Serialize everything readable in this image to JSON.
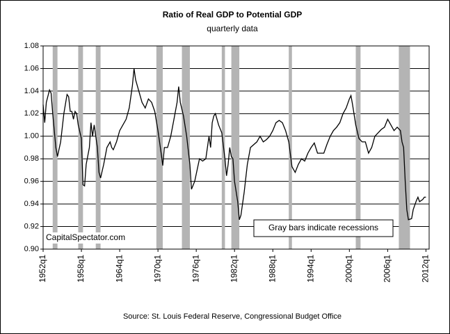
{
  "chart_data": {
    "type": "line",
    "title": "Ratio of Real GDP to Potential GDP",
    "subtitle": "quarterly data",
    "source": "Source: St. Louis Federal Reserve, Congressional Budget Office",
    "annotations": [
      "Gray bars indicate recessions",
      "CapitalSpectator.com"
    ],
    "x": [
      1952.0,
      1952.25,
      1952.5,
      1953.0,
      1953.25,
      1953.5,
      1954.0,
      1954.25,
      1954.75,
      1955.25,
      1955.75,
      1956.0,
      1956.25,
      1956.5,
      1956.75,
      1957.0,
      1957.25,
      1957.5,
      1958.0,
      1958.25,
      1958.5,
      1958.75,
      1959.25,
      1959.5,
      1959.75,
      1960.0,
      1960.25,
      1960.5,
      1960.75,
      1961.0,
      1961.5,
      1962.0,
      1962.5,
      1962.75,
      1963.0,
      1963.5,
      1964.0,
      1964.5,
      1965.0,
      1965.5,
      1966.0,
      1966.25,
      1966.5,
      1967.0,
      1967.5,
      1968.0,
      1968.5,
      1969.0,
      1969.5,
      1970.0,
      1970.5,
      1970.75,
      1971.0,
      1971.5,
      1972.0,
      1972.5,
      1973.0,
      1973.25,
      1973.5,
      1974.0,
      1974.5,
      1975.0,
      1975.25,
      1975.75,
      1976.5,
      1977.0,
      1977.5,
      1978.0,
      1978.25,
      1978.5,
      1978.75,
      1979.0,
      1979.5,
      1980.0,
      1980.5,
      1980.75,
      1981.0,
      1981.25,
      1981.5,
      1981.75,
      1982.0,
      1982.5,
      1982.75,
      1983.0,
      1983.5,
      1984.0,
      1984.5,
      1985.5,
      1986.0,
      1986.5,
      1987.0,
      1987.5,
      1988.0,
      1988.5,
      1989.0,
      1989.5,
      1990.0,
      1990.5,
      1991.0,
      1991.5,
      1992.0,
      1992.5,
      1993.0,
      1993.5,
      1994.0,
      1994.5,
      1995.0,
      1996.0,
      1996.5,
      1997.0,
      1997.5,
      1998.0,
      1998.5,
      1999.0,
      1999.5,
      2000.0,
      2000.25,
      2000.5,
      2001.0,
      2001.5,
      2002.0,
      2002.5,
      2003.0,
      2003.5,
      2004.0,
      2004.5,
      2005.0,
      2005.5,
      2006.0,
      2006.5,
      2007.0,
      2007.5,
      2008.0,
      2008.25,
      2008.5,
      2008.75,
      2009.0,
      2009.25,
      2009.75,
      2010.0,
      2010.5,
      2010.75,
      2011.0,
      2011.5,
      2011.75,
      2012.0
    ],
    "series": [
      {
        "name": "Ratio of Real GDP to Potential GDP",
        "color": "#000000",
        "values": [
          1.028,
          1.012,
          1.03,
          1.041,
          1.038,
          1.02,
          0.99,
          0.982,
          0.995,
          1.02,
          1.037,
          1.035,
          1.022,
          1.022,
          1.015,
          1.022,
          1.02,
          1.01,
          0.998,
          0.957,
          0.956,
          0.975,
          0.99,
          1.012,
          1.0,
          1.01,
          1.0,
          0.99,
          0.968,
          0.963,
          0.975,
          0.99,
          0.995,
          0.99,
          0.988,
          0.995,
          1.005,
          1.01,
          1.015,
          1.025,
          1.045,
          1.06,
          1.05,
          1.04,
          1.03,
          1.025,
          1.033,
          1.03,
          1.022,
          1.005,
          0.985,
          0.974,
          0.99,
          0.99,
          1.0,
          1.015,
          1.03,
          1.044,
          1.03,
          1.018,
          1.0,
          0.975,
          0.953,
          0.96,
          0.98,
          0.978,
          0.98,
          1.0,
          0.99,
          1.012,
          1.018,
          1.02,
          1.01,
          1.003,
          0.98,
          0.965,
          0.975,
          0.99,
          0.982,
          0.98,
          0.96,
          0.942,
          0.926,
          0.93,
          0.95,
          0.975,
          0.99,
          0.995,
          1.0,
          0.995,
          0.997,
          1.0,
          1.005,
          1.012,
          1.014,
          1.012,
          1.005,
          0.995,
          0.973,
          0.968,
          0.975,
          0.98,
          0.978,
          0.985,
          0.99,
          0.994,
          0.985,
          0.985,
          0.993,
          1.0,
          1.005,
          1.008,
          1.012,
          1.02,
          1.025,
          1.033,
          1.036,
          1.028,
          1.01,
          0.998,
          0.995,
          0.995,
          0.985,
          0.99,
          1.0,
          1.003,
          1.006,
          1.008,
          1.015,
          1.01,
          1.005,
          1.008,
          1.005,
          0.995,
          0.99,
          0.96,
          0.935,
          0.926,
          0.927,
          0.935,
          0.943,
          0.946,
          0.942,
          0.944,
          0.946,
          0.946
        ]
      }
    ],
    "recessions": [
      {
        "start": 1953.5,
        "end": 1954.25
      },
      {
        "start": 1957.5,
        "end": 1958.25
      },
      {
        "start": 1960.25,
        "end": 1961.0
      },
      {
        "start": 1969.75,
        "end": 1970.75
      },
      {
        "start": 1973.75,
        "end": 1975.0
      },
      {
        "start": 1980.0,
        "end": 1980.5
      },
      {
        "start": 1981.5,
        "end": 1982.75
      },
      {
        "start": 1990.5,
        "end": 1991.0
      },
      {
        "start": 2001.0,
        "end": 2001.75
      },
      {
        "start": 2007.75,
        "end": 2009.5
      }
    ],
    "recession_color": "#b4b4b4",
    "xlim": [
      1952,
      2012.5
    ],
    "xticks": [
      {
        "value": 1952,
        "label": "1952q1"
      },
      {
        "value": 1958,
        "label": "1958q1"
      },
      {
        "value": 1964,
        "label": "1964q1"
      },
      {
        "value": 1970,
        "label": "1970q1"
      },
      {
        "value": 1976,
        "label": "1976q1"
      },
      {
        "value": 1982,
        "label": "1982q1"
      },
      {
        "value": 1988,
        "label": "1988q1"
      },
      {
        "value": 1994,
        "label": "1994q1"
      },
      {
        "value": 2000,
        "label": "2000q1"
      },
      {
        "value": 2006,
        "label": "2006q1"
      },
      {
        "value": 2012,
        "label": "2012q1"
      }
    ],
    "ylim": [
      0.9,
      1.08
    ],
    "yticks": [
      {
        "value": 0.9,
        "label": "0.90"
      },
      {
        "value": 0.92,
        "label": "0.92"
      },
      {
        "value": 0.94,
        "label": "0.94"
      },
      {
        "value": 0.96,
        "label": "0.96"
      },
      {
        "value": 0.98,
        "label": "0.98"
      },
      {
        "value": 1.0,
        "label": "1.00"
      },
      {
        "value": 1.02,
        "label": "1.02"
      },
      {
        "value": 1.04,
        "label": "1.04"
      },
      {
        "value": 1.06,
        "label": "1.06"
      },
      {
        "value": 1.08,
        "label": "1.08"
      }
    ],
    "grid": true
  }
}
